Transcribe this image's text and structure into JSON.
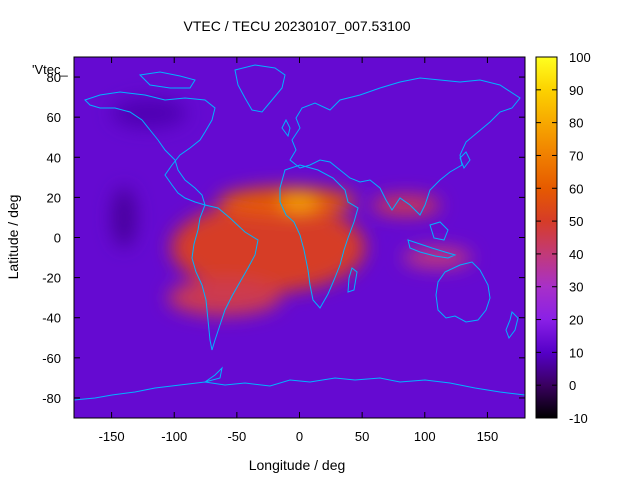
{
  "chart_data": {
    "type": "heatmap",
    "title": "VTEC / TECU 20230107_007.53100",
    "xlabel": "Longitude / deg",
    "ylabel": "Latitude / deg",
    "series_key": "'Vtec_",
    "colorbar_label": "",
    "xlim": [
      -180,
      180
    ],
    "ylim": [
      -90,
      90
    ],
    "zlim": [
      -10,
      100
    ],
    "x_ticks": [
      -150,
      -100,
      -50,
      0,
      50,
      100,
      150
    ],
    "y_ticks": [
      -80,
      -60,
      -40,
      -20,
      0,
      20,
      40,
      60,
      80
    ],
    "z_ticks": [
      -10,
      0,
      10,
      20,
      30,
      40,
      50,
      60,
      70,
      80,
      90,
      100
    ],
    "grid": false,
    "colormap": "gnuplot-pm3d",
    "colors": {
      "coastline": "#00b4ff",
      "background_field": "#8a1fe8"
    },
    "field_features": [
      {
        "name": "background",
        "lon_center": 0,
        "lat_center": 0,
        "lon_width": 360,
        "lat_width": 180,
        "tecu": 13
      },
      {
        "name": "anomaly-main",
        "lon_center": -25,
        "lat_center": -5,
        "lon_width": 155,
        "lat_width": 45,
        "tecu": 50
      },
      {
        "name": "anomaly-north-crest",
        "lon_center": -10,
        "lat_center": 18,
        "lon_width": 110,
        "lat_width": 14,
        "tecu": 60
      },
      {
        "name": "anomaly-peak",
        "lon_center": 0,
        "lat_center": 18,
        "lon_width": 30,
        "lat_width": 10,
        "tecu": 78
      },
      {
        "name": "anomaly-south",
        "lon_center": -60,
        "lat_center": -30,
        "lon_width": 90,
        "lat_width": 18,
        "tecu": 45
      },
      {
        "name": "asia-tail-north",
        "lon_center": 85,
        "lat_center": 16,
        "lon_width": 55,
        "lat_width": 10,
        "tecu": 45
      },
      {
        "name": "asia-tail-south",
        "lon_center": 110,
        "lat_center": -10,
        "lon_width": 55,
        "lat_width": 10,
        "tecu": 40
      },
      {
        "name": "pacific-trough",
        "lon_center": -140,
        "lat_center": 10,
        "lon_width": 20,
        "lat_width": 30,
        "tecu": 6
      },
      {
        "name": "arctic-low",
        "lon_center": -120,
        "lat_center": 62,
        "lon_width": 60,
        "lat_width": 15,
        "tecu": 8
      }
    ]
  }
}
